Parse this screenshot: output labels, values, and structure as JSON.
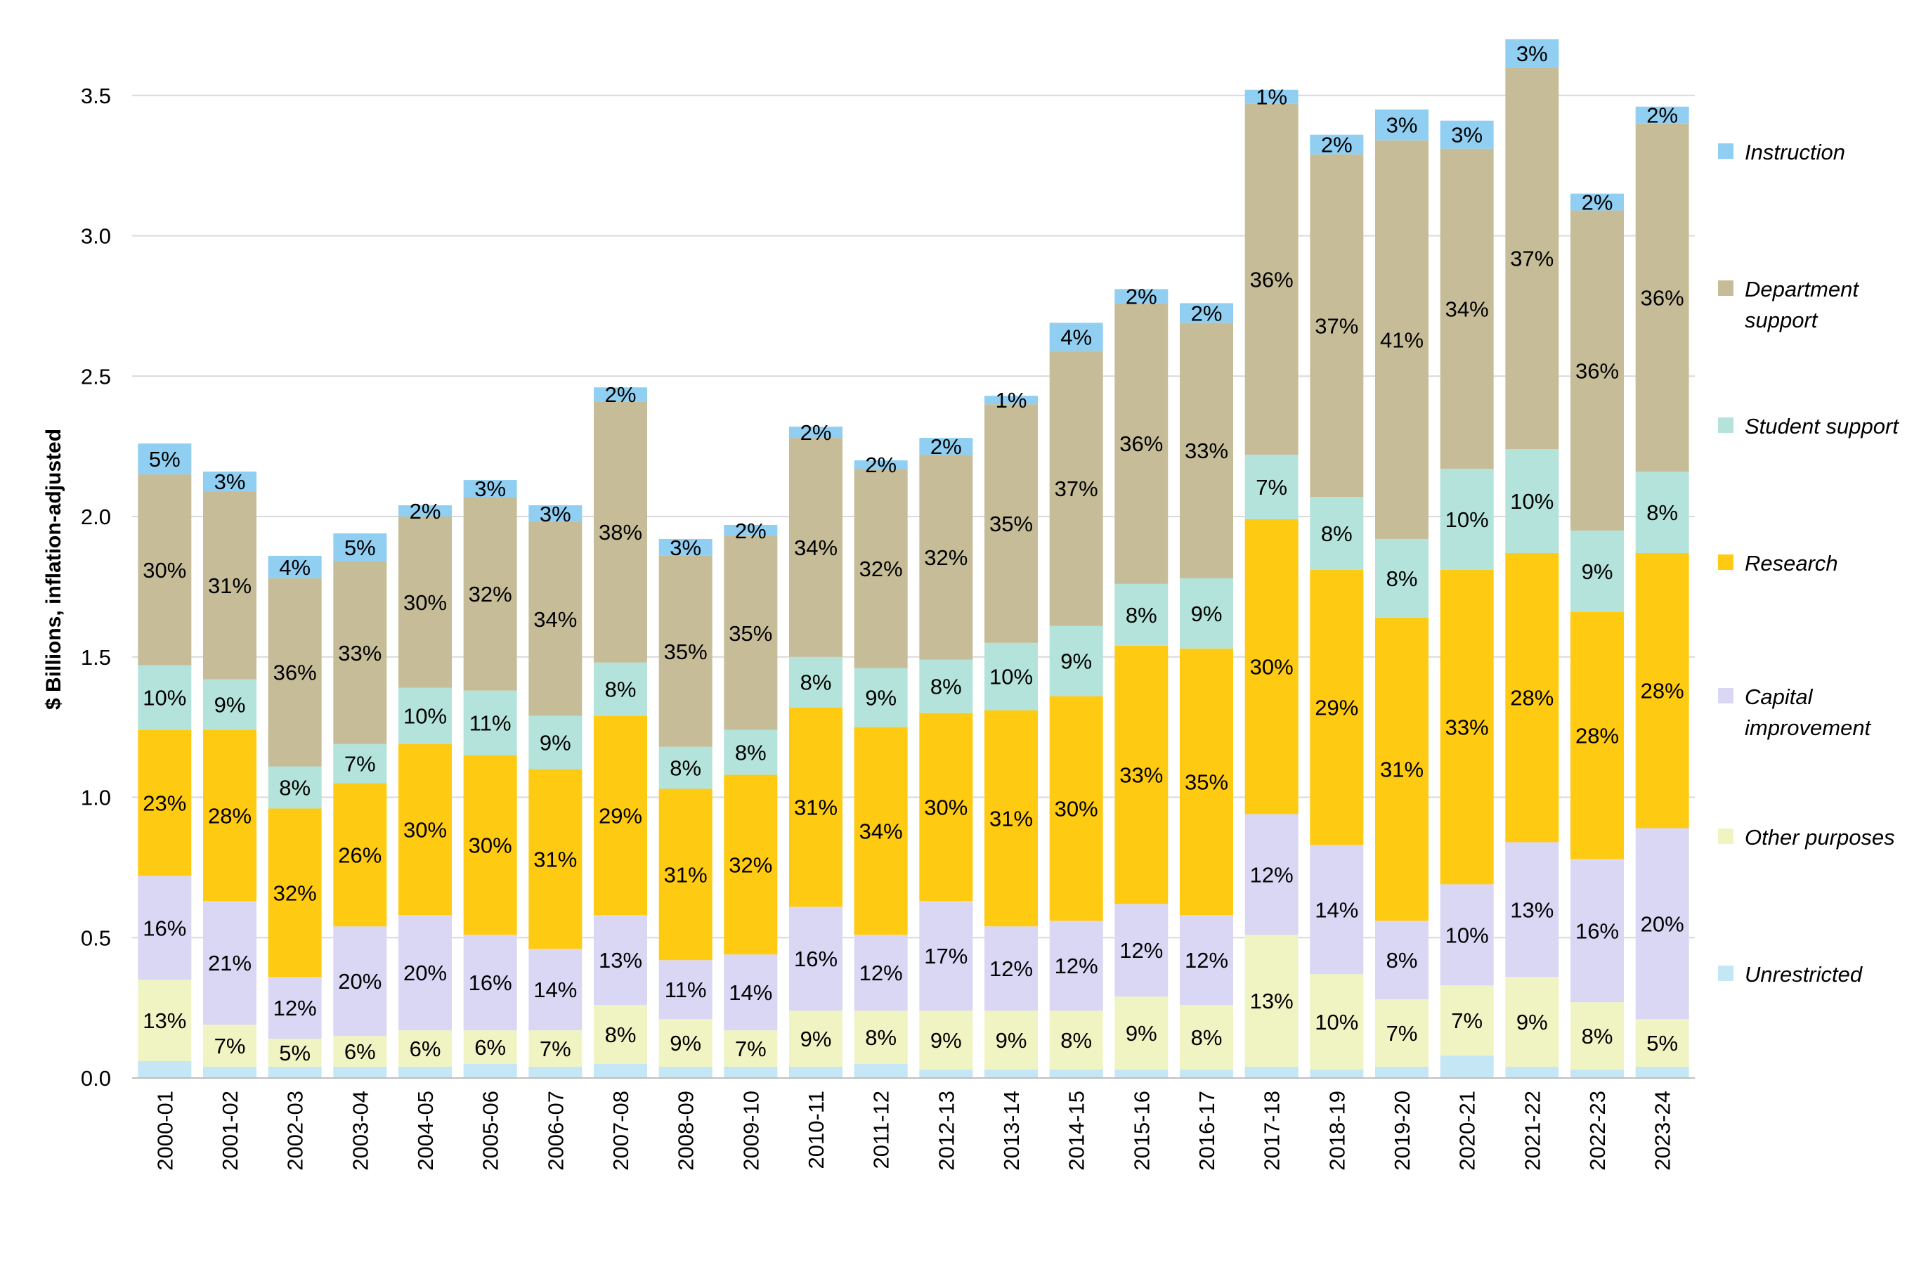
{
  "chart_data": {
    "type": "bar",
    "stacked": true,
    "title": "",
    "xlabel": "",
    "ylabel": "$ Billions, inflation-adjusted",
    "ylim": [
      0,
      3.7
    ],
    "yticks": [
      "0.0",
      "0.5",
      "1.0",
      "1.5",
      "2.0",
      "2.5",
      "3.0",
      "3.5"
    ],
    "grid": true,
    "legend_position": "right",
    "categories": [
      "2000-01",
      "2001-02",
      "2002-03",
      "2003-04",
      "2004-05",
      "2005-06",
      "2006-07",
      "2007-08",
      "2008-09",
      "2009-10",
      "2010-11",
      "2011-12",
      "2012-13",
      "2013-14",
      "2014-15",
      "2015-16",
      "2016-17",
      "2017-18",
      "2018-19",
      "2019-20",
      "2020-21",
      "2021-22",
      "2022-23",
      "2023-24"
    ],
    "series": [
      {
        "name": "Unrestricted",
        "color": "#C5E6F5",
        "values": [
          0.06,
          0.04,
          0.04,
          0.04,
          0.04,
          0.05,
          0.04,
          0.05,
          0.04,
          0.04,
          0.04,
          0.05,
          0.03,
          0.03,
          0.03,
          0.03,
          0.03,
          0.04,
          0.03,
          0.04,
          0.08,
          0.04,
          0.03,
          0.04
        ],
        "labels": [
          "",
          "",
          "",
          "",
          "",
          "",
          "",
          "",
          "",
          "",
          "",
          "",
          "",
          "",
          "",
          "",
          "",
          "",
          "",
          "",
          "",
          "",
          "",
          ""
        ]
      },
      {
        "name": "Other purposes",
        "color": "#F0F4C3",
        "values": [
          0.29,
          0.15,
          0.1,
          0.11,
          0.13,
          0.12,
          0.13,
          0.21,
          0.17,
          0.13,
          0.2,
          0.19,
          0.21,
          0.21,
          0.21,
          0.26,
          0.23,
          0.47,
          0.34,
          0.24,
          0.25,
          0.32,
          0.24,
          0.17
        ],
        "labels": [
          "13%",
          "7%",
          "5%",
          "6%",
          "6%",
          "6%",
          "7%",
          "8%",
          "9%",
          "7%",
          "9%",
          "8%",
          "9%",
          "9%",
          "8%",
          "9%",
          "8%",
          "13%",
          "10%",
          "7%",
          "7%",
          "9%",
          "8%",
          "5%"
        ]
      },
      {
        "name": "Capital improvement",
        "color": "#DAD7F5",
        "values": [
          0.37,
          0.44,
          0.22,
          0.39,
          0.41,
          0.34,
          0.29,
          0.32,
          0.21,
          0.27,
          0.37,
          0.27,
          0.39,
          0.3,
          0.32,
          0.33,
          0.32,
          0.43,
          0.46,
          0.28,
          0.36,
          0.48,
          0.51,
          0.68
        ],
        "labels": [
          "16%",
          "21%",
          "12%",
          "20%",
          "20%",
          "16%",
          "14%",
          "13%",
          "11%",
          "14%",
          "16%",
          "12%",
          "17%",
          "12%",
          "12%",
          "12%",
          "12%",
          "12%",
          "14%",
          "8%",
          "10%",
          "13%",
          "16%",
          "20%"
        ]
      },
      {
        "name": "Research",
        "color": "#FFCA12",
        "values": [
          0.52,
          0.61,
          0.6,
          0.51,
          0.61,
          0.64,
          0.64,
          0.71,
          0.61,
          0.64,
          0.71,
          0.74,
          0.67,
          0.77,
          0.8,
          0.92,
          0.95,
          1.05,
          0.98,
          1.08,
          1.12,
          1.03,
          0.88,
          0.98
        ],
        "labels": [
          "23%",
          "28%",
          "32%",
          "26%",
          "30%",
          "30%",
          "31%",
          "29%",
          "31%",
          "32%",
          "31%",
          "34%",
          "30%",
          "31%",
          "30%",
          "33%",
          "35%",
          "30%",
          "29%",
          "31%",
          "33%",
          "28%",
          "28%",
          "28%"
        ]
      },
      {
        "name": "Student support",
        "color": "#B3E3DA",
        "values": [
          0.23,
          0.18,
          0.15,
          0.14,
          0.2,
          0.23,
          0.19,
          0.19,
          0.15,
          0.16,
          0.18,
          0.21,
          0.19,
          0.24,
          0.25,
          0.22,
          0.25,
          0.23,
          0.26,
          0.28,
          0.36,
          0.37,
          0.29,
          0.29
        ],
        "labels": [
          "10%",
          "9%",
          "8%",
          "7%",
          "10%",
          "11%",
          "9%",
          "8%",
          "8%",
          "8%",
          "8%",
          "9%",
          "8%",
          "10%",
          "9%",
          "8%",
          "9%",
          "7%",
          "8%",
          "8%",
          "10%",
          "10%",
          "9%",
          "8%"
        ]
      },
      {
        "name": "Department support",
        "color": "#C6BD98",
        "values": [
          0.68,
          0.67,
          0.67,
          0.65,
          0.61,
          0.69,
          0.69,
          0.93,
          0.68,
          0.69,
          0.78,
          0.71,
          0.73,
          0.85,
          0.98,
          1.0,
          0.91,
          1.25,
          1.22,
          1.42,
          1.14,
          1.36,
          1.14,
          1.24
        ],
        "labels": [
          "30%",
          "31%",
          "36%",
          "33%",
          "30%",
          "32%",
          "34%",
          "38%",
          "35%",
          "35%",
          "34%",
          "32%",
          "32%",
          "35%",
          "37%",
          "36%",
          "33%",
          "36%",
          "37%",
          "41%",
          "34%",
          "37%",
          "36%",
          "36%"
        ]
      },
      {
        "name": "Instruction",
        "color": "#90CFF2",
        "values": [
          0.11,
          0.07,
          0.08,
          0.1,
          0.04,
          0.06,
          0.06,
          0.05,
          0.06,
          0.04,
          0.04,
          0.03,
          0.06,
          0.03,
          0.1,
          0.05,
          0.07,
          0.05,
          0.07,
          0.11,
          0.1,
          0.1,
          0.06,
          0.06
        ],
        "labels": [
          "5%",
          "3%",
          "4%",
          "5%",
          "2%",
          "3%",
          "3%",
          "2%",
          "3%",
          "2%",
          "2%",
          "2%",
          "2%",
          "1%",
          "4%",
          "2%",
          "2%",
          "1%",
          "2%",
          "3%",
          "3%",
          "3%",
          "2%",
          "2%"
        ]
      }
    ]
  },
  "legend_order": [
    "Instruction",
    "Department support",
    "Student support",
    "Research",
    "Capital improvement",
    "Other purposes",
    "Unrestricted"
  ]
}
